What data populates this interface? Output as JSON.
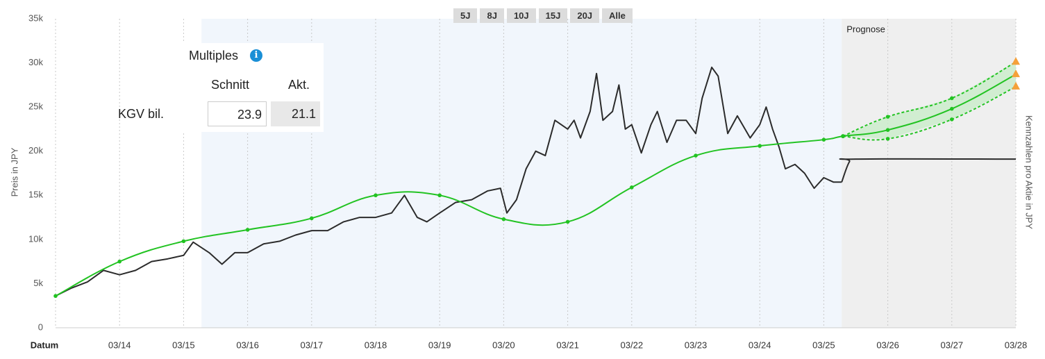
{
  "chart_data": {
    "type": "line",
    "y_label": "Preis in JPY",
    "y2_label": "Kennzahlen pro Aktie in JPY",
    "x_label": "Datum",
    "xlim": [
      2013,
      2028
    ],
    "xticks": [
      {
        "value": 2014,
        "label": "03/14"
      },
      {
        "value": 2015,
        "label": "03/15"
      },
      {
        "value": 2016,
        "label": "03/16"
      },
      {
        "value": 2017,
        "label": "03/17"
      },
      {
        "value": 2018,
        "label": "03/18"
      },
      {
        "value": 2019,
        "label": "03/19"
      },
      {
        "value": 2020,
        "label": "03/20"
      },
      {
        "value": 2021,
        "label": "03/21"
      },
      {
        "value": 2022,
        "label": "03/22"
      },
      {
        "value": 2023,
        "label": "03/23"
      },
      {
        "value": 2024,
        "label": "03/24"
      },
      {
        "value": 2025,
        "label": "03/25"
      },
      {
        "value": 2026,
        "label": "03/26"
      },
      {
        "value": 2027,
        "label": "03/27"
      },
      {
        "value": 2028,
        "label": "03/28"
      }
    ],
    "ylim": [
      0,
      35000
    ],
    "yticks": [
      0,
      {
        "value": 5000,
        "label": "5k"
      },
      {
        "value": 10000,
        "label": "10k"
      },
      {
        "value": 15000,
        "label": "15k"
      },
      {
        "value": 20000,
        "label": "20k"
      },
      {
        "value": 25000,
        "label": "25k"
      },
      {
        "value": 30000,
        "label": "30k"
      },
      {
        "value": 35000,
        "label": "35k"
      }
    ],
    "grid": "x",
    "highlight_region": [
      2015.28,
      2025.28
    ],
    "forecast_region": {
      "label": "Prognose",
      "start": 2025.28,
      "end": 2028
    },
    "fill_between": [
      2,
      3
    ],
    "series": [
      {
        "color": "#2b2b2b",
        "smooth": false,
        "markers": false,
        "x": [
          2013,
          2013.25,
          2013.5,
          2013.75,
          2014,
          2014.25,
          2014.5,
          2014.75,
          2015,
          2015.15,
          2015.4,
          2015.6,
          2015.8,
          2016,
          2016.25,
          2016.5,
          2016.75,
          2017,
          2017.25,
          2017.5,
          2017.75,
          2018,
          2018.25,
          2018.45,
          2018.65,
          2018.8,
          2019,
          2019.25,
          2019.5,
          2019.75,
          2019.95,
          2020.05,
          2020.2,
          2020.35,
          2020.5,
          2020.65,
          2020.8,
          2021,
          2021.1,
          2021.2,
          2021.35,
          2021.45,
          2021.55,
          2021.7,
          2021.8,
          2021.9,
          2022,
          2022.15,
          2022.3,
          2022.4,
          2022.55,
          2022.7,
          2022.85,
          2023,
          2023.1,
          2023.25,
          2023.35,
          2023.5,
          2023.65,
          2023.85,
          2024,
          2024.1,
          2024.2,
          2024.3,
          2024.4,
          2024.55,
          2024.7,
          2024.85,
          2025,
          2025.15,
          2025.28
        ],
        "values": [
          3600,
          4500,
          5200,
          6500,
          6000,
          6500,
          7500,
          7800,
          8200,
          9700,
          8500,
          7200,
          8500,
          8500,
          9500,
          9800,
          10500,
          11000,
          11000,
          12000,
          12500,
          12500,
          13000,
          15000,
          12500,
          12000,
          13000,
          14200,
          14500,
          15500,
          15800,
          13000,
          14500,
          18000,
          20000,
          19500,
          23500,
          22500,
          23500,
          21500,
          24500,
          28800,
          23500,
          24500,
          27500,
          22500,
          23000,
          19800,
          23000,
          24500,
          21000,
          23500,
          23500,
          22000,
          26000,
          29500,
          28500,
          22000,
          24000,
          21500,
          23000,
          25000,
          22500,
          20500,
          18000,
          18500,
          17500,
          15800,
          17000,
          16500,
          16500
        ]
      },
      {
        "color": "#2b2b2b",
        "smooth": true,
        "markers": false,
        "x": [
          2025.28,
          2025.4,
          2025.5,
          2028
        ],
        "values": [
          16500,
          18800,
          19100,
          19100
        ]
      },
      {
        "color": "#22c322",
        "smooth": true,
        "markers": false,
        "dash": true,
        "end_marker": "triangle",
        "x": [
          2025.3,
          2026,
          2027,
          2028
        ],
        "values": [
          21700,
          23900,
          26000,
          30100
        ]
      },
      {
        "color": "#22c322",
        "smooth": true,
        "markers": false,
        "dash": true,
        "end_marker": "triangle",
        "x": [
          2025.3,
          2026,
          2027,
          2028
        ],
        "values": [
          21700,
          21400,
          23600,
          27300
        ]
      },
      {
        "color": "#22c322",
        "smooth": true,
        "markers": true,
        "end_marker": "triangle",
        "x": [
          2013,
          2014,
          2015,
          2016,
          2017,
          2018,
          2019,
          2020,
          2021,
          2022,
          2023,
          2024,
          2025,
          2025.3,
          2026,
          2027,
          2028
        ],
        "values": [
          3600,
          7500,
          9800,
          11100,
          12400,
          15000,
          15000,
          12300,
          12000,
          15900,
          19500,
          20600,
          21300,
          21700,
          22400,
          24800,
          28700
        ]
      }
    ],
    "marker_color": "#f5a13a",
    "band_color": "#c9ecc9"
  },
  "range_buttons": [
    "5J",
    "8J",
    "10J",
    "15J",
    "20J",
    "Alle"
  ],
  "multiples": {
    "title": "Multiples",
    "columns": [
      "Schnitt",
      "Akt."
    ],
    "rows": [
      {
        "label": "KGV bil.",
        "values": [
          "23.9",
          "21.1"
        ]
      }
    ]
  }
}
